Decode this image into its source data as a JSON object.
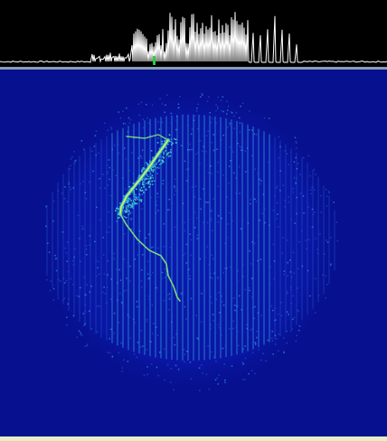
{
  "spectrum": {
    "trace_color": "#ffffff",
    "baseline_color": "#ffffff",
    "background": "#000000",
    "marker_color": "#2ecc40"
  },
  "waterfall": {
    "background": "#07108f",
    "colormap": [
      "#0a1aa8",
      "#1e56c8",
      "#2f9be0",
      "#3fd0c0",
      "#7fe07a",
      "#d8f060"
    ]
  },
  "status": {
    "color": "#e8edc6"
  }
}
